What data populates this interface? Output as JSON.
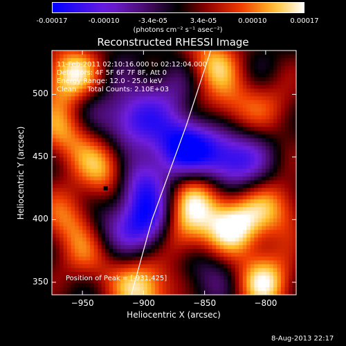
{
  "colorbar": {
    "tick_labels": [
      "-0.00017",
      "-0.00010",
      "-3.4e-05",
      "3.4e-05",
      "0.00010",
      "0.00017"
    ],
    "tick_values": [
      -0.00017,
      -0.0001,
      -3.4e-05,
      3.4e-05,
      0.0001,
      0.00017
    ],
    "units": "(photons cm⁻² s⁻¹ asec⁻²)",
    "range": [
      -0.00017,
      0.00017
    ]
  },
  "chart_data": {
    "type": "heatmap",
    "title": "Reconstructed RHESSI Image",
    "xlabel": "Heliocentric X (arcsec)",
    "ylabel": "Heliocentric Y (arcsec)",
    "xlim": [
      -975,
      -775
    ],
    "ylim": [
      340,
      535
    ],
    "xticks": [
      -950,
      -900,
      -850,
      -800
    ],
    "yticks": [
      350,
      400,
      450,
      500
    ],
    "xtick_labels": [
      "−950",
      "−900",
      "−850",
      "−800"
    ],
    "ytick_labels": [
      "350",
      "400",
      "450",
      "500"
    ],
    "peak": [
      -931,
      425
    ],
    "annotations": {
      "time": "11-Feb-2011 02:10:16.000 to 02:12:04.000",
      "detectors": "Detectors: 4F 5F 6F 7F 8F, Att 0",
      "energy": "Energy Range: 12.0 - 25.0 keV",
      "clean": "Clean     Total Counts: 2.10E+03",
      "peak_label": "Position of Peak = [-931,425]"
    },
    "blobs": [
      {
        "x": -960,
        "y": 515,
        "v": 0.00016
      },
      {
        "x": -965,
        "y": 470,
        "v": 0.00012
      },
      {
        "x": -930,
        "y": 440,
        "v": 0.00015
      },
      {
        "x": -960,
        "y": 400,
        "v": 0.00011
      },
      {
        "x": -945,
        "y": 370,
        "v": 8e-05
      },
      {
        "x": -900,
        "y": 345,
        "v": 0.00016
      },
      {
        "x": -870,
        "y": 390,
        "v": 0.00014
      },
      {
        "x": -825,
        "y": 395,
        "v": 0.00017
      },
      {
        "x": -800,
        "y": 350,
        "v": 0.00015
      },
      {
        "x": -790,
        "y": 410,
        "v": 0.0001
      },
      {
        "x": -830,
        "y": 490,
        "v": 9e-05
      },
      {
        "x": -845,
        "y": 525,
        "v": 0.00012
      },
      {
        "x": -790,
        "y": 490,
        "v": 6e-05
      },
      {
        "x": -855,
        "y": 420,
        "v": 0.00012
      },
      {
        "x": -910,
        "y": 480,
        "v": -0.00012
      },
      {
        "x": -905,
        "y": 430,
        "v": -0.00013
      },
      {
        "x": -895,
        "y": 395,
        "v": -0.00017
      },
      {
        "x": -870,
        "y": 460,
        "v": -0.00016
      },
      {
        "x": -840,
        "y": 450,
        "v": -0.00012
      },
      {
        "x": -935,
        "y": 395,
        "v": -6e-05
      },
      {
        "x": -820,
        "y": 445,
        "v": -8e-05
      },
      {
        "x": -875,
        "y": 505,
        "v": -6e-05
      },
      {
        "x": -850,
        "y": 360,
        "v": -5e-05
      },
      {
        "x": -945,
        "y": 485,
        "v": -4e-05
      }
    ],
    "limb": [
      [
        -910,
        340
      ],
      [
        -893,
        400
      ],
      [
        -865,
        475
      ],
      [
        -845,
        535
      ]
    ]
  },
  "footer": {
    "date": "8-Aug-2013 22:17"
  }
}
